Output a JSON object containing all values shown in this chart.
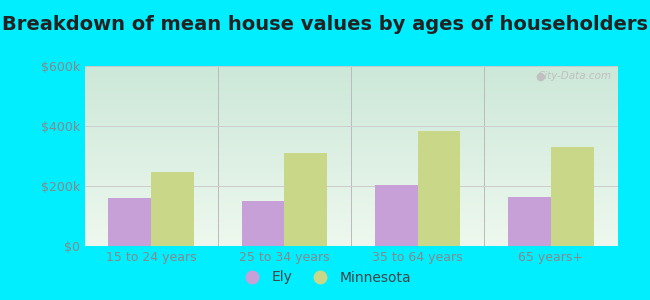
{
  "title": "Breakdown of mean house values by ages of householders",
  "categories": [
    "15 to 24 years",
    "25 to 34 years",
    "35 to 64 years",
    "65 years+"
  ],
  "ely_values": [
    160000,
    150000,
    205000,
    162000
  ],
  "mn_values": [
    248000,
    310000,
    385000,
    330000
  ],
  "ylim": [
    0,
    600000
  ],
  "yticks": [
    0,
    200000,
    400000,
    600000
  ],
  "ytick_labels": [
    "$0",
    "$200k",
    "$400k",
    "$600k"
  ],
  "ely_color": "#c8a0d8",
  "mn_color": "#c8d888",
  "outer_bg": "#00eeff",
  "plot_bg_top": "#cce8d8",
  "plot_bg_bottom": "#eef8ee",
  "bar_width": 0.32,
  "legend_ely": "Ely",
  "legend_mn": "Minnesota",
  "watermark": "City-Data.com",
  "title_fontsize": 14,
  "tick_fontsize": 9,
  "legend_fontsize": 10,
  "grid_color": "#cccccc",
  "tick_color": "#888888"
}
